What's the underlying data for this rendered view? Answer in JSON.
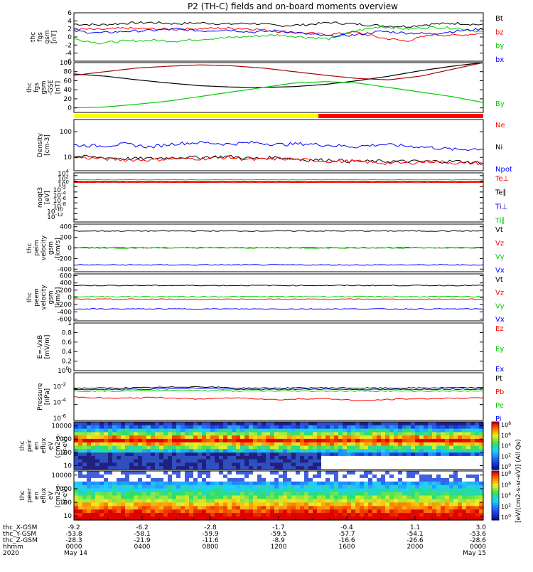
{
  "title": "P2 (TH-C) fields and on-board moments overview",
  "colors": {
    "black": "#000000",
    "red": "#ff0000",
    "green": "#00cc00",
    "blue": "#0000ff",
    "darkred": "#aa0000",
    "yellow": "#ffff00"
  },
  "chart_data": [
    {
      "type": "line",
      "id": "fgs-gsm",
      "ylabel": [
        "thc",
        "fgs",
        "gsm",
        "[nT]"
      ],
      "ylim": [
        -6,
        6
      ],
      "ticks": [
        6,
        4,
        2,
        0,
        -2,
        -4,
        -6
      ],
      "legend": [
        "Bt",
        "bz",
        "by",
        "bx"
      ],
      "series": [
        {
          "name": "Bt",
          "color": "black",
          "values": [
            3.2,
            3.0,
            3.4,
            3.6,
            3.3,
            3.5,
            3.2,
            3.4,
            2.8,
            3.0,
            3.6,
            3.2,
            2.8,
            2.6,
            3.2,
            3.4,
            3.0
          ]
        },
        {
          "name": "bz",
          "color": "red",
          "values": [
            2.0,
            1.8,
            2.2,
            2.0,
            1.9,
            2.1,
            2.2,
            2.0,
            1.4,
            1.0,
            0.6,
            1.2,
            -0.2,
            -1.0,
            0.6,
            0.4,
            1.0
          ]
        },
        {
          "name": "by",
          "color": "green",
          "values": [
            -0.5,
            -1.5,
            -1.0,
            -0.8,
            -1.0,
            -0.5,
            -0.2,
            0.2,
            0.5,
            0.0,
            -0.5,
            1.5,
            2.6,
            2.0,
            2.4,
            2.2,
            1.2
          ]
        },
        {
          "name": "bx",
          "color": "blue",
          "values": [
            1.5,
            1.0,
            1.4,
            1.6,
            2.0,
            1.5,
            1.8,
            1.2,
            1.6,
            0.8,
            0.2,
            0.5,
            1.4,
            1.0,
            0.8,
            1.5,
            2.0
          ]
        }
      ]
    },
    {
      "type": "line",
      "id": "fgs-gse",
      "ylabel": [
        "thc",
        "fgs",
        "gsm",
        "-GSE",
        "[nT]"
      ],
      "ylim": [
        -10,
        100
      ],
      "ticks": [
        100,
        80,
        60,
        40,
        20,
        0
      ],
      "legend": [
        "By"
      ],
      "series": [
        {
          "name": "Bt",
          "color": "black",
          "values": [
            75,
            70,
            62,
            55,
            49,
            46,
            45,
            47,
            52,
            60,
            70,
            82,
            92,
            100
          ]
        },
        {
          "name": "",
          "color": "darkred",
          "values": [
            72,
            80,
            88,
            92,
            95,
            93,
            88,
            80,
            72,
            65,
            62,
            70,
            85,
            100
          ]
        },
        {
          "name": "By",
          "color": "green",
          "values": [
            0,
            2,
            8,
            15,
            25,
            35,
            45,
            55,
            58,
            55,
            45,
            35,
            25,
            12
          ]
        }
      ]
    },
    {
      "type": "line",
      "id": "density",
      "ylabel": [
        "Density",
        "[cm-3]"
      ],
      "scale": "log",
      "ylim": [
        3,
        300
      ],
      "ticks": [
        100,
        10
      ],
      "legend": [
        "Ne",
        "Ni",
        "Npot"
      ],
      "series": [
        {
          "name": "Ni",
          "color": "blue",
          "values": [
            30,
            28,
            33,
            25,
            35,
            38,
            33,
            38,
            32,
            34,
            30,
            26,
            32,
            28,
            24,
            20,
            22
          ]
        },
        {
          "name": "Ne",
          "color": "black",
          "values": [
            11,
            10,
            9,
            9,
            10,
            10,
            11,
            9,
            10,
            8,
            8,
            7,
            7,
            7,
            7,
            7,
            6
          ]
        },
        {
          "name": "Npot",
          "color": "red",
          "values": [
            10,
            9,
            8,
            8,
            9,
            9,
            10,
            8,
            9,
            8,
            7,
            7,
            6,
            6,
            7,
            6,
            6
          ]
        }
      ]
    },
    {
      "type": "line",
      "id": "moms-temp",
      "ylabel": [
        "moqt3",
        "[eV]"
      ],
      "scale": "log",
      "ylim": [
        1e-13,
        100000.0
      ],
      "ticks": [
        "10^4",
        "10^2",
        "10^0",
        "10^-2",
        "10^-4",
        "10^-6",
        "10^-8",
        "10^-10",
        "10^-12"
      ],
      "legend": [
        "Te⊥",
        "Te∥",
        "Ti⊥",
        "Ti∥"
      ],
      "series": [
        {
          "name": "Te⊥",
          "color": "red",
          "values": [
            30,
            30,
            30,
            30,
            30,
            30,
            30,
            30,
            30,
            30,
            30
          ]
        },
        {
          "name": "Te∥",
          "color": "black",
          "values": [
            60,
            60,
            60,
            60,
            60,
            60,
            60,
            60,
            60,
            60,
            60
          ]
        },
        {
          "name": "Ti∥",
          "color": "green",
          "values": [
            300,
            300,
            300,
            300,
            300,
            300,
            300,
            300,
            300,
            300,
            300
          ]
        }
      ]
    },
    {
      "type": "line",
      "id": "peim-velocity",
      "ylabel": [
        "thc",
        "peim",
        "velocity",
        "gsm",
        "[km/s]"
      ],
      "ylim": [
        -450,
        450
      ],
      "ticks": [
        400,
        200,
        0,
        -200,
        -400
      ],
      "legend": [
        "Vt",
        "Vz",
        "Vy",
        "Vx"
      ],
      "series": [
        {
          "name": "Vt",
          "color": "black",
          "values": [
            320,
            320,
            320,
            320,
            320,
            320,
            320,
            320,
            320,
            320,
            320
          ]
        },
        {
          "name": "Vz",
          "color": "red",
          "values": [
            5,
            5,
            5,
            5,
            5,
            5,
            5,
            5,
            5,
            5,
            5
          ]
        },
        {
          "name": "Vy",
          "color": "green",
          "values": [
            0,
            0,
            0,
            0,
            0,
            0,
            0,
            0,
            0,
            0,
            0
          ]
        },
        {
          "name": "Vx",
          "color": "blue",
          "values": [
            -320,
            -320,
            -320,
            -320,
            -320,
            -320,
            -320,
            -320,
            -320,
            -320,
            -320
          ]
        }
      ]
    },
    {
      "type": "line",
      "id": "peem-velocity",
      "ylabel": [
        "thc",
        "peem",
        "velocity",
        "gsm",
        "[km/s]"
      ],
      "ylim": [
        -650,
        650
      ],
      "ticks": [
        600,
        400,
        200,
        0,
        -200,
        -400,
        -600
      ],
      "legend": [
        "Vt",
        "Vz",
        "Vy",
        "Vx"
      ],
      "series": [
        {
          "name": "Vt",
          "color": "black",
          "values": [
            330,
            330,
            330,
            330,
            330,
            330,
            330,
            330,
            330,
            330,
            330
          ]
        },
        {
          "name": "Vz",
          "color": "red",
          "values": [
            -50,
            -50,
            -50,
            -50,
            -50,
            -50,
            -50,
            -50,
            -50,
            -50,
            -50
          ]
        },
        {
          "name": "Vy",
          "color": "green",
          "values": [
            20,
            20,
            20,
            20,
            20,
            20,
            20,
            20,
            20,
            20,
            20
          ]
        },
        {
          "name": "Vx",
          "color": "blue",
          "values": [
            -320,
            -320,
            -320,
            -320,
            -320,
            -320,
            -320,
            -320,
            -320,
            -320,
            -320
          ]
        }
      ]
    },
    {
      "type": "line",
      "id": "efield",
      "ylabel": [
        "E=-VxB",
        "[mV/m]"
      ],
      "ylim": [
        0,
        1
      ],
      "ticks": [
        1.0,
        0.8,
        0.6,
        0.4,
        0.2,
        0.0
      ],
      "legend": [
        "Ez",
        "Ey",
        "Ex"
      ],
      "series": []
    },
    {
      "type": "line",
      "id": "pressure",
      "ylabel": [
        "Pressure",
        "[nPa]"
      ],
      "scale": "log",
      "ylim": [
        1e-06,
        1
      ],
      "ticks": [
        "10^0",
        "10^-2",
        "10^-4",
        "10^-6"
      ],
      "legend": [
        "Pt",
        "Pb",
        "Pe",
        "Pi"
      ],
      "series": [
        {
          "name": "Pt",
          "color": "black",
          "values": [
            0.012,
            0.012,
            0.014,
            0.018,
            0.012,
            0.012,
            0.013,
            0.012,
            0.012,
            0.013,
            0.013
          ]
        },
        {
          "name": "Pi",
          "color": "blue",
          "values": [
            0.008,
            0.008,
            0.009,
            0.012,
            0.008,
            0.008,
            0.009,
            0.008,
            0.008,
            0.009,
            0.009
          ]
        },
        {
          "name": "Pe",
          "color": "green",
          "values": [
            0.005,
            0.005,
            0.006,
            0.006,
            0.005,
            0.005,
            0.005,
            0.005,
            0.005,
            0.005,
            0.005
          ]
        },
        {
          "name": "Pb",
          "color": "red",
          "values": [
            0.0009,
            0.0006,
            0.0008,
            0.0005,
            0.0007,
            0.0004,
            0.0006,
            0.0003,
            0.0005,
            0.0006,
            0.0007
          ]
        }
      ]
    },
    {
      "type": "heatmap",
      "id": "peir",
      "ylabel": [
        "thc",
        "peir",
        "en",
        "eflux",
        "eV",
        "(cm2-s-",
        "sr-eV)"
      ],
      "scale": "log",
      "ylim": [
        5,
        20000
      ],
      "ticks": [
        10000,
        1000,
        100,
        10
      ],
      "colorbar": {
        "label": "[eV/(cm2-s-sr-eV)] (All Qs)",
        "ticks": [
          "10^8",
          "10^6",
          "10^4",
          "10^2",
          "10^0"
        ]
      }
    },
    {
      "type": "heatmap",
      "id": "peer",
      "ylabel": [
        "thc",
        "peer",
        "en",
        "eflux",
        "eV",
        "(cm2-s-",
        "sr-eV)"
      ],
      "scale": "log",
      "ylim": [
        5,
        20000
      ],
      "ticks": [
        10000,
        1000,
        100,
        10
      ],
      "colorbar": {
        "label": "[eV/(cm2-s-sr-eV)] (All Qs)",
        "ticks": [
          "10^8",
          "10^6",
          "10^4",
          "10^2",
          "10^0"
        ]
      }
    }
  ],
  "mode_bar": {
    "segments": [
      {
        "to_hhmm": "1420",
        "color": "yellow"
      },
      {
        "to_hhmm": "2400",
        "color": "red"
      }
    ]
  },
  "footer": {
    "row_labels": [
      "thc_X-GSM",
      "thc_Y-GSM",
      "thc_Z-GSM",
      "hhmm",
      "2020"
    ],
    "columns": [
      {
        "x": "-9.2",
        "y": "-53.8",
        "z": "-28.3",
        "hhmm": "0000",
        "date": "May 14"
      },
      {
        "x": "-6.2",
        "y": "-58.1",
        "z": "-21.9",
        "hhmm": "0400",
        "date": ""
      },
      {
        "x": "-2.8",
        "y": "-59.9",
        "z": "-11.6",
        "hhmm": "0800",
        "date": ""
      },
      {
        "x": "-1.7",
        "y": "-59.5",
        "z": "-8.9",
        "hhmm": "1200",
        "date": ""
      },
      {
        "x": "-0.4",
        "y": "-57.7",
        "z": "-16.6",
        "hhmm": "1600",
        "date": ""
      },
      {
        "x": "1.1",
        "y": "-54.1",
        "z": "-26.6",
        "hhmm": "2000",
        "date": ""
      },
      {
        "x": "3.0",
        "y": "-53.6",
        "z": "-28.6",
        "hhmm": "0000",
        "date": "May 15"
      }
    ]
  }
}
